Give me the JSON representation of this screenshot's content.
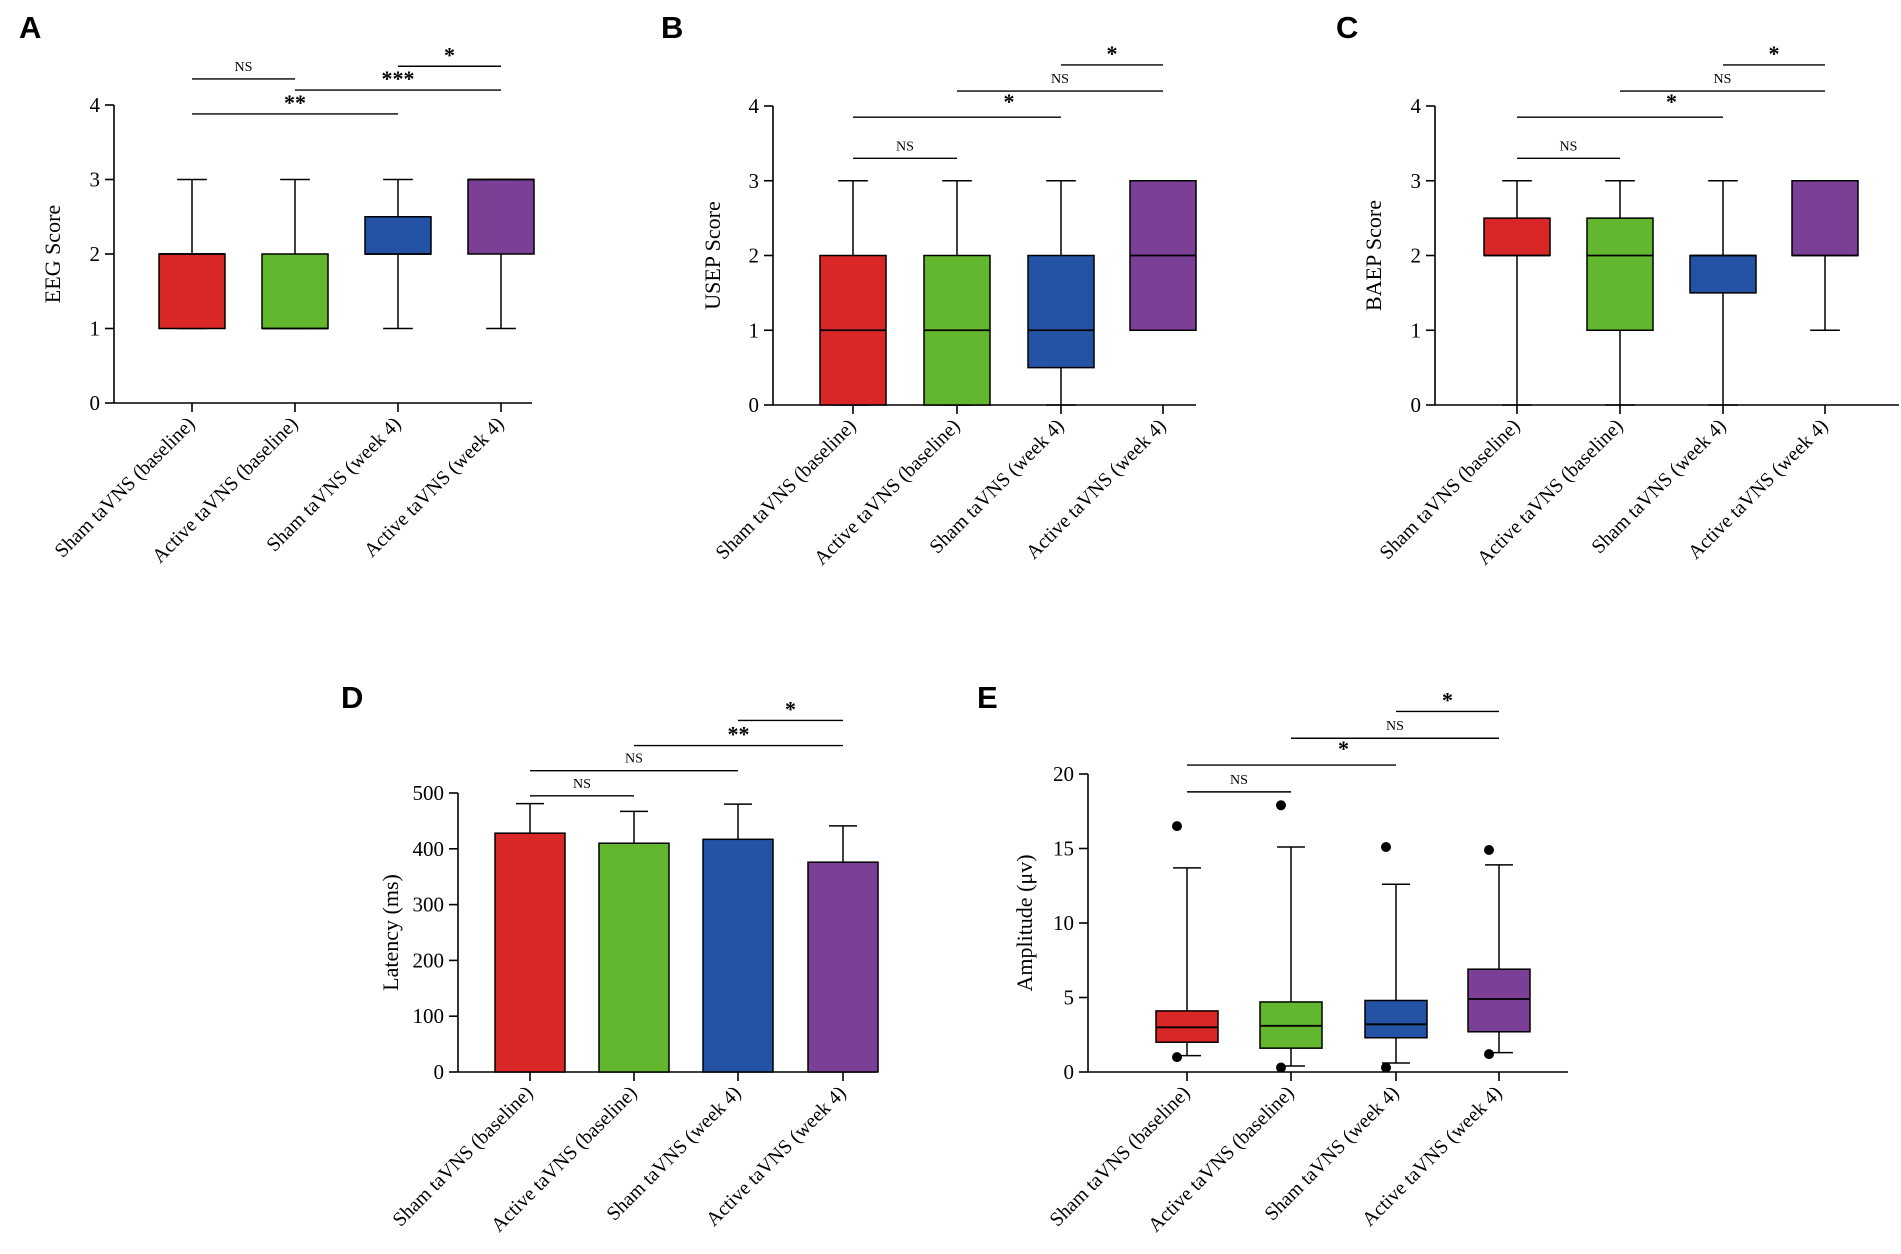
{
  "figure": {
    "panels": [
      "A",
      "B",
      "C",
      "D",
      "E"
    ]
  },
  "colors": {
    "sham_baseline": "#d92626",
    "active_baseline": "#63b72f",
    "sham_week4": "#2452a5",
    "active_week4": "#7b3f95",
    "axis": "#000000"
  },
  "chart_data": [
    {
      "panel": "A",
      "type": "box",
      "ylabel": "EEG Score",
      "ylim": [
        0,
        4
      ],
      "yticks": [
        0,
        1,
        2,
        3,
        4
      ],
      "categories": [
        "Sham taVNS (baseline)",
        "Active taVNS (baseline)",
        "Sham taVNS (week 4)",
        "Active taVNS (week 4)"
      ],
      "boxes": [
        {
          "min": 1,
          "q1": 1,
          "median": 2,
          "q3": 2,
          "max": 3
        },
        {
          "min": 1,
          "q1": 1,
          "median": 1,
          "q3": 2,
          "max": 3
        },
        {
          "min": 1,
          "q1": 2,
          "median": 2,
          "q3": 2.5,
          "max": 3
        },
        {
          "min": 1,
          "q1": 2,
          "median": 3,
          "q3": 3,
          "max": 3
        }
      ],
      "comparisons": [
        {
          "from": 0,
          "to": 1,
          "label": "NS",
          "level": 4.35
        },
        {
          "from": 0,
          "to": 2,
          "label": "**",
          "level": 3.88
        },
        {
          "from": 1,
          "to": 3,
          "label": "***",
          "level": 4.2
        },
        {
          "from": 2,
          "to": 3,
          "label": "*",
          "level": 4.52
        }
      ]
    },
    {
      "panel": "B",
      "type": "box",
      "ylabel": "USEP Score",
      "ylim": [
        0,
        4
      ],
      "yticks": [
        0,
        1,
        2,
        3,
        4
      ],
      "categories": [
        "Sham taVNS (baseline)",
        "Active taVNS (baseline)",
        "Sham taVNS (week 4)",
        "Active taVNS (week 4)"
      ],
      "boxes": [
        {
          "min": 0,
          "q1": 0,
          "median": 1,
          "q3": 2,
          "max": 3
        },
        {
          "min": 0,
          "q1": 0,
          "median": 1,
          "q3": 2,
          "max": 3
        },
        {
          "min": 0,
          "q1": 0.5,
          "median": 1,
          "q3": 2,
          "max": 3
        },
        {
          "min": 1,
          "q1": 1,
          "median": 2,
          "q3": 3,
          "max": 3
        }
      ],
      "comparisons": [
        {
          "from": 0,
          "to": 1,
          "label": "NS",
          "level": 3.3
        },
        {
          "from": 0,
          "to": 2,
          "label": "",
          "level": 3.85
        },
        {
          "from": 1,
          "to": 3,
          "label": "NS",
          "level": 4.2
        },
        {
          "from": 2,
          "to": 3,
          "label": "*",
          "level": 4.55
        }
      ],
      "annotations": [
        {
          "text": "*",
          "between": [
            1,
            2
          ],
          "level": 4.2
        }
      ]
    },
    {
      "panel": "C",
      "type": "box",
      "ylabel": "BAEP Score",
      "ylim": [
        0,
        4
      ],
      "yticks": [
        0,
        1,
        2,
        3,
        4
      ],
      "categories": [
        "Sham taVNS (baseline)",
        "Active taVNS (baseline)",
        "Sham taVNS (week 4)",
        "Active taVNS (week 4)"
      ],
      "boxes": [
        {
          "min": 0,
          "q1": 2,
          "median": 2,
          "q3": 2.5,
          "max": 3
        },
        {
          "min": 0,
          "q1": 1,
          "median": 2,
          "q3": 2.5,
          "max": 3
        },
        {
          "min": 0,
          "q1": 1.5,
          "median": 2,
          "q3": 2,
          "max": 3
        },
        {
          "min": 1,
          "q1": 2,
          "median": 2,
          "q3": 3,
          "max": 3
        }
      ],
      "comparisons": [
        {
          "from": 0,
          "to": 1,
          "label": "NS",
          "level": 3.3
        },
        {
          "from": 0,
          "to": 2,
          "label": "",
          "level": 3.85
        },
        {
          "from": 1,
          "to": 3,
          "label": "NS",
          "level": 4.2
        },
        {
          "from": 2,
          "to": 3,
          "label": "*",
          "level": 4.55
        }
      ],
      "annotations": [
        {
          "text": "*",
          "between": [
            1,
            2
          ],
          "level": 4.2
        }
      ]
    },
    {
      "panel": "D",
      "type": "bar",
      "ylabel": "Latency (ms)",
      "ylim": [
        0,
        500
      ],
      "yticks": [
        0,
        100,
        200,
        300,
        400,
        500
      ],
      "categories": [
        "Sham taVNS (baseline)",
        "Active taVNS (baseline)",
        "Sham taVNS (week 4)",
        "Active taVNS (week 4)"
      ],
      "values": [
        428,
        410,
        417,
        376
      ],
      "error_upper": [
        481,
        467,
        480,
        441
      ],
      "comparisons": [
        {
          "from": 0,
          "to": 1,
          "label": "NS",
          "level": 495
        },
        {
          "from": 0,
          "to": 2,
          "label": "NS",
          "level": 540
        },
        {
          "from": 1,
          "to": 3,
          "label": "**",
          "level": 585
        },
        {
          "from": 2,
          "to": 3,
          "label": "*",
          "level": 630
        }
      ]
    },
    {
      "panel": "E",
      "type": "box",
      "ylabel": "Amplitude (μv)",
      "ylim": [
        0,
        20
      ],
      "yticks": [
        0,
        5,
        10,
        15,
        20
      ],
      "categories": [
        "Sham taVNS (baseline)",
        "Active taVNS (baseline)",
        "Sham taVNS (week 4)",
        "Active taVNS (week 4)"
      ],
      "boxes": [
        {
          "min": 1.1,
          "q1": 2,
          "median": 3,
          "q3": 4.1,
          "max": 13.7,
          "outliers": [
            16.5,
            1.0
          ]
        },
        {
          "min": 0.4,
          "q1": 1.6,
          "median": 3.1,
          "q3": 4.7,
          "max": 15.1,
          "outliers": [
            17.9,
            0.3
          ]
        },
        {
          "min": 0.6,
          "q1": 2.3,
          "median": 3.2,
          "q3": 4.8,
          "max": 12.6,
          "outliers": [
            15.1,
            0.3
          ]
        },
        {
          "min": 1.3,
          "q1": 2.7,
          "median": 4.9,
          "q3": 6.9,
          "max": 13.9,
          "outliers": [
            14.9,
            1.2
          ]
        }
      ],
      "comparisons": [
        {
          "from": 0,
          "to": 1,
          "label": "NS",
          "level": 18.8
        },
        {
          "from": 0,
          "to": 2,
          "label": "",
          "level": 20.6
        },
        {
          "from": 1,
          "to": 3,
          "label": "NS",
          "level": 22.4
        },
        {
          "from": 2,
          "to": 3,
          "label": "*",
          "level": 24.2
        }
      ],
      "annotations": [
        {
          "text": "*",
          "between": [
            1,
            2
          ],
          "level": 22.4
        }
      ]
    }
  ]
}
